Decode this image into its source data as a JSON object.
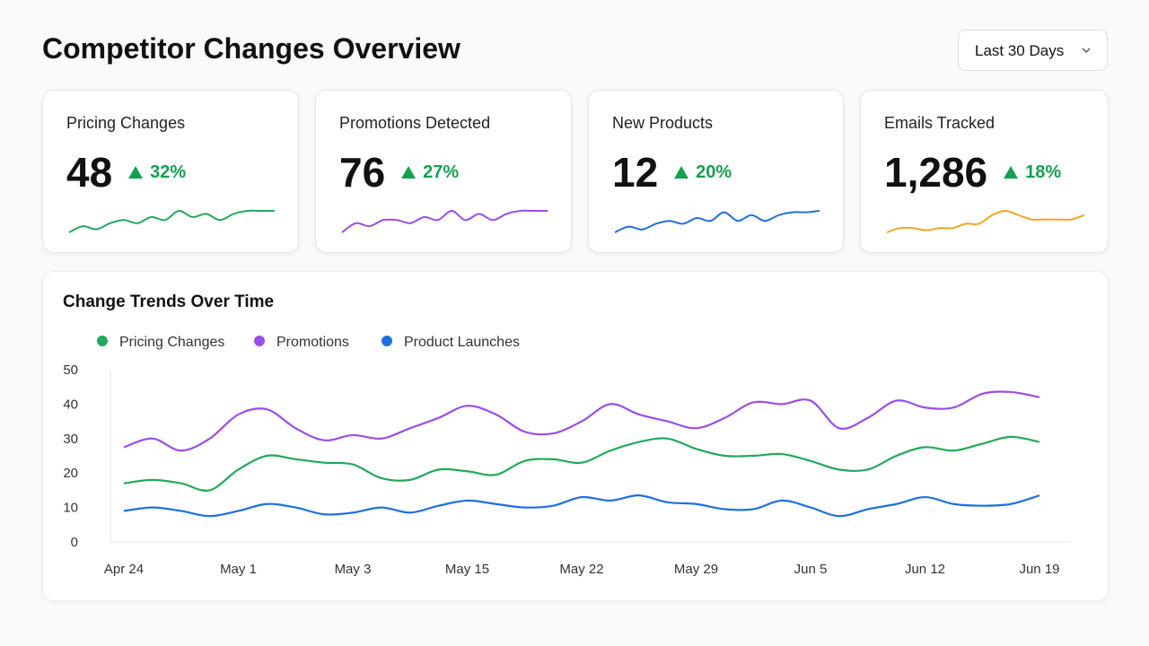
{
  "header": {
    "title": "Competitor Changes Overview",
    "range": "Last 30 Days"
  },
  "cards": [
    {
      "label": "Pricing Changes",
      "value": "48",
      "change": "32%",
      "color": "#22a95a",
      "trend": [
        1,
        3,
        2,
        4,
        5,
        4,
        6,
        5,
        8,
        6,
        7,
        5,
        7,
        8,
        8,
        8
      ]
    },
    {
      "label": "Promotions Detected",
      "value": "76",
      "change": "27%",
      "color": "#9b4de8",
      "trend": [
        1,
        4,
        3,
        5,
        5,
        4,
        6,
        5,
        8,
        5,
        7,
        5,
        7,
        8,
        8,
        8
      ]
    },
    {
      "label": "New Products",
      "value": "12",
      "change": "20%",
      "color": "#1f6fe0",
      "trend": [
        1,
        3,
        2,
        4,
        5,
        4,
        6,
        5,
        8,
        5,
        7,
        5,
        7,
        8,
        8,
        8.5
      ]
    },
    {
      "label": "Emails Tracked",
      "value": "1,286",
      "change": "18%",
      "color": "#f5a524",
      "trend": [
        1,
        2,
        2,
        1.5,
        2,
        2,
        3,
        3,
        5,
        6,
        5,
        4,
        4,
        4,
        4,
        5
      ]
    }
  ],
  "chart_data": {
    "type": "line",
    "title": "Change Trends Over Time",
    "categories": [
      "Apr 24",
      null,
      null,
      null,
      "May 1",
      null,
      null,
      null,
      "May 3",
      null,
      null,
      null,
      "May 15",
      null,
      null,
      null,
      "May 22",
      null,
      null,
      null,
      "May 29",
      null,
      null,
      null,
      "Jun 5",
      null,
      null,
      null,
      "Jun 12",
      null,
      null,
      null,
      "Jun 19"
    ],
    "series": [
      {
        "name": "Pricing Changes",
        "color": "#22a95a",
        "values": [
          17,
          18,
          17,
          15,
          21,
          25,
          24,
          23,
          22.5,
          18.5,
          18,
          21,
          20.5,
          19.5,
          23.5,
          24,
          23,
          26.5,
          29,
          30,
          27,
          25,
          25,
          25.5,
          23.5,
          21,
          21,
          25,
          27.5,
          26.5,
          28.5,
          30.5,
          29
        ]
      },
      {
        "name": "Promotions",
        "color": "#9b4de8",
        "values": [
          27.5,
          30,
          26.5,
          30,
          37,
          38.5,
          33,
          29.5,
          31,
          30,
          33,
          36,
          39.5,
          37,
          32,
          31.5,
          35,
          40,
          37,
          35,
          33,
          36,
          40.5,
          40,
          41,
          33,
          36,
          41,
          39,
          39,
          43,
          43.5,
          42
        ]
      },
      {
        "name": "Product Launches",
        "color": "#1f6fe0",
        "values": [
          9,
          10,
          9,
          7.5,
          9,
          11,
          10,
          8,
          8.5,
          10,
          8.5,
          10.5,
          12,
          11,
          10,
          10.5,
          13,
          12,
          13.5,
          11.5,
          11,
          9.5,
          9.5,
          12,
          10,
          7.5,
          9.5,
          11,
          13,
          11,
          10.5,
          11,
          13.5
        ]
      }
    ],
    "ylim": [
      0,
      50
    ],
    "yticks": [
      0,
      10,
      20,
      30,
      40,
      50
    ],
    "grid": false,
    "legend": "top-left"
  }
}
